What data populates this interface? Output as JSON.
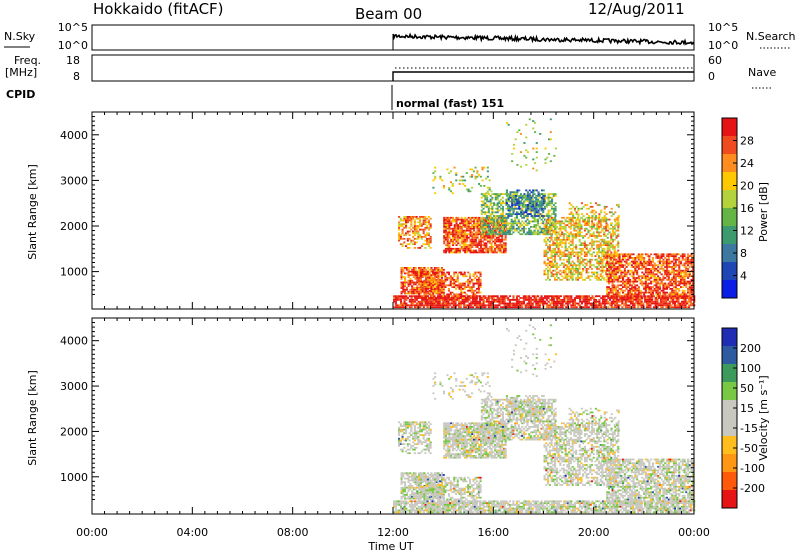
{
  "header": {
    "station": "Hokkaido (fitACF)",
    "beam": "Beam 00",
    "date": "12/Aug/2011"
  },
  "noise_panel": {
    "left_label": "N.Sky",
    "left_ticks": [
      "10^5",
      "10^0"
    ],
    "right_ticks": [
      "10^5",
      "10^0"
    ],
    "right_label": "N.Search"
  },
  "freq_panel": {
    "left_label_1": "Freq.",
    "left_label_2": "[MHz]",
    "left_ticks": [
      "18",
      "8"
    ],
    "right_ticks": [
      "60",
      "0"
    ],
    "right_label": "Nave"
  },
  "cpid": {
    "label": "CPID",
    "value": "normal (fast) 151"
  },
  "colors": {
    "power_scale": [
      "#0a1ee6",
      "#1e46b4",
      "#3c78a0",
      "#3c9b6e",
      "#64b446",
      "#b4d23c",
      "#ffc800",
      "#ff8c1e",
      "#f04b1e",
      "#e61414"
    ],
    "velocity_scale": [
      "#e61414",
      "#ff5a0a",
      "#ff9614",
      "#ffbe1e",
      "#c8c8c0",
      "#c8c8c0",
      "#78c846",
      "#3c9b5a",
      "#2d5aa0",
      "#1e2db4"
    ]
  },
  "chart_data": [
    {
      "type": "heatmap",
      "name": "power",
      "xlabel": "",
      "ylabel": "Slant Range [km]",
      "x_range_hours": [
        0,
        24
      ],
      "ylim": [
        180,
        4500
      ],
      "y_ticks": [
        "1000",
        "2000",
        "3000",
        "4000"
      ],
      "data_start_hour": 12,
      "colorbar": {
        "label": "Power [dB]",
        "ticks": [
          "28",
          "24",
          "20",
          "16",
          "12",
          "8",
          "4"
        ]
      }
    },
    {
      "type": "heatmap",
      "name": "velocity",
      "xlabel": "Time UT",
      "ylabel": "Slant Range [km]",
      "x_range_hours": [
        0,
        24
      ],
      "x_tick_labels": [
        "00:00",
        "04:00",
        "08:00",
        "12:00",
        "16:00",
        "20:00",
        "00:00"
      ],
      "ylim": [
        180,
        4500
      ],
      "y_ticks": [
        "1000",
        "2000",
        "3000",
        "4000"
      ],
      "data_start_hour": 12,
      "colorbar": {
        "label": "Velocity [m s⁻¹]",
        "ticks": [
          "200",
          "100",
          "50",
          "15",
          "-15",
          "-50",
          "-100",
          "-200"
        ]
      }
    }
  ]
}
